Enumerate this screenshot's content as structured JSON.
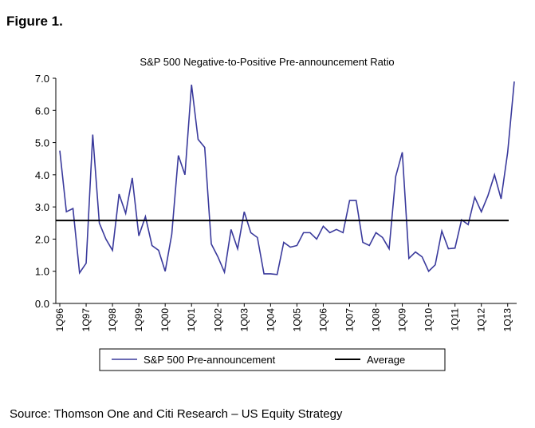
{
  "figure_label": "Figure 1.",
  "source": "Source: Thomson One and Citi Research – US Equity Strategy",
  "chart_data": {
    "type": "line",
    "title": "S&P 500 Negative-to-Positive Pre-announcement Ratio",
    "categories": [
      "1Q96",
      null,
      null,
      null,
      "1Q97",
      null,
      null,
      null,
      "1Q98",
      null,
      null,
      null,
      "1Q99",
      null,
      null,
      null,
      "1Q00",
      null,
      null,
      null,
      "1Q01",
      null,
      null,
      null,
      "1Q02",
      null,
      null,
      null,
      "1Q03",
      null,
      null,
      null,
      "1Q04",
      null,
      null,
      null,
      "1Q05",
      null,
      null,
      null,
      "1Q06",
      null,
      null,
      null,
      "1Q07",
      null,
      null,
      null,
      "1Q08",
      null,
      null,
      null,
      "1Q09",
      null,
      null,
      null,
      "1Q10",
      null,
      null,
      null,
      "1Q11",
      null,
      null,
      null,
      "1Q12",
      null,
      null,
      null,
      "1Q13",
      null
    ],
    "series": [
      {
        "name": "S&P 500 Pre-announcement",
        "color": "#3a3a9c",
        "values": [
          4.75,
          2.85,
          2.95,
          0.95,
          1.25,
          5.25,
          2.5,
          2.0,
          1.65,
          3.4,
          2.8,
          3.9,
          2.1,
          2.7,
          1.8,
          1.65,
          1.0,
          2.15,
          4.6,
          4.0,
          6.8,
          5.1,
          4.85,
          1.85,
          1.45,
          0.97,
          2.3,
          1.7,
          2.85,
          2.2,
          2.05,
          0.92,
          0.92,
          0.9,
          1.9,
          1.75,
          1.8,
          2.2,
          2.2,
          2.0,
          2.4,
          2.2,
          2.3,
          2.2,
          3.2,
          3.2,
          1.9,
          1.8,
          2.2,
          2.05,
          1.7,
          3.95,
          4.7,
          1.4,
          1.6,
          1.45,
          1.0,
          1.2,
          2.25,
          1.7,
          1.72,
          2.6,
          2.45,
          3.3,
          2.85,
          3.35,
          4.0,
          3.25,
          4.7,
          6.9
        ]
      }
    ],
    "reference_line": {
      "name": "Average",
      "value": 2.58,
      "color": "#000000"
    },
    "ylim": [
      0,
      7
    ],
    "yticks": [
      {
        "value": 0,
        "label": "0.0"
      },
      {
        "value": 1,
        "label": "1.0"
      },
      {
        "value": 2,
        "label": "2.0"
      },
      {
        "value": 3,
        "label": "3.0"
      },
      {
        "value": 4,
        "label": "4.0"
      },
      {
        "value": 5,
        "label": "5.0"
      },
      {
        "value": 6,
        "label": "6.0"
      },
      {
        "value": 7,
        "label": "7.0"
      }
    ],
    "grid": false,
    "legend": "bottom"
  }
}
